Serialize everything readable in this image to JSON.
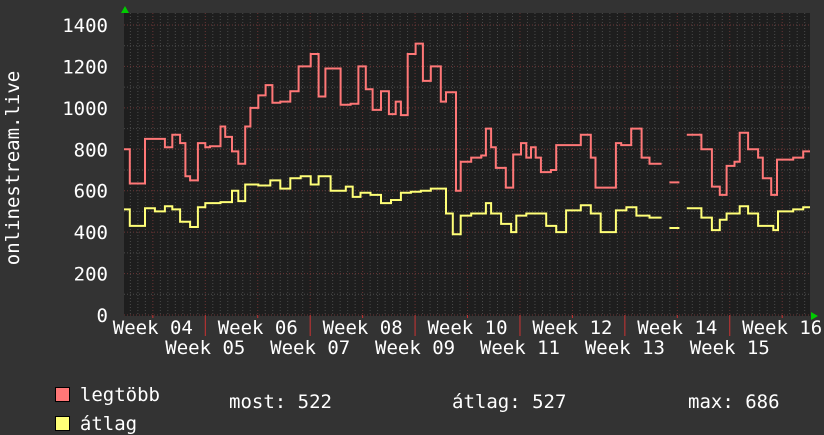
{
  "chart_data": {
    "type": "line",
    "step": true,
    "ylabel": "onlinestream.live",
    "xlabel": "",
    "ylim": [
      0,
      1400
    ],
    "xlim_weeks": [
      3.45,
      16.53
    ],
    "yticks": [
      "0",
      "200",
      "400",
      "600",
      "800",
      "1000",
      "1200",
      "1400"
    ],
    "xticks": [
      {
        "week": 4,
        "label": "Week 04"
      },
      {
        "week": 5,
        "label": "Week 05"
      },
      {
        "week": 6,
        "label": "Week 06"
      },
      {
        "week": 7,
        "label": "Week 07"
      },
      {
        "week": 8,
        "label": "Week 08"
      },
      {
        "week": 9,
        "label": "Week 09"
      },
      {
        "week": 10,
        "label": "Week 10"
      },
      {
        "week": 11,
        "label": "Week 11"
      },
      {
        "week": 12,
        "label": "Week 12"
      },
      {
        "week": 13,
        "label": "Week 13"
      },
      {
        "week": 14,
        "label": "Week 14"
      },
      {
        "week": 15,
        "label": "Week 15"
      },
      {
        "week": 16,
        "label": "Week 16"
      }
    ],
    "grid": true,
    "background": "#1e1e1e",
    "series": [
      {
        "name": "legtöbb",
        "color": "#ff7777",
        "points": [
          [
            3.45,
            800
          ],
          [
            3.56,
            635
          ],
          [
            3.85,
            850
          ],
          [
            4.23,
            810
          ],
          [
            4.37,
            870
          ],
          [
            4.52,
            830
          ],
          [
            4.62,
            670
          ],
          [
            4.71,
            650
          ],
          [
            4.86,
            830
          ],
          [
            5.0,
            810
          ],
          [
            5.09,
            815
          ],
          [
            5.29,
            910
          ],
          [
            5.38,
            860
          ],
          [
            5.51,
            790
          ],
          [
            5.63,
            730
          ],
          [
            5.76,
            910
          ],
          [
            5.86,
            1000
          ],
          [
            6.01,
            1060
          ],
          [
            6.15,
            1110
          ],
          [
            6.28,
            1025
          ],
          [
            6.43,
            1030
          ],
          [
            6.62,
            1080
          ],
          [
            6.78,
            1200
          ],
          [
            7.01,
            1260
          ],
          [
            7.16,
            1055
          ],
          [
            7.29,
            1190
          ],
          [
            7.58,
            1015
          ],
          [
            7.77,
            1020
          ],
          [
            7.92,
            1200
          ],
          [
            8.06,
            1090
          ],
          [
            8.19,
            990
          ],
          [
            8.35,
            1080
          ],
          [
            8.5,
            970
          ],
          [
            8.63,
            1030
          ],
          [
            8.73,
            965
          ],
          [
            8.86,
            1260
          ],
          [
            9.01,
            1310
          ],
          [
            9.15,
            1130
          ],
          [
            9.3,
            1200
          ],
          [
            9.49,
            1030
          ],
          [
            9.59,
            1075
          ],
          [
            9.78,
            600
          ],
          [
            9.87,
            740
          ],
          [
            10.07,
            760
          ],
          [
            10.26,
            770
          ],
          [
            10.35,
            900
          ],
          [
            10.45,
            810
          ],
          [
            10.54,
            710
          ],
          [
            10.73,
            615
          ],
          [
            10.87,
            775
          ],
          [
            11.02,
            830
          ],
          [
            11.12,
            760
          ],
          [
            11.21,
            810
          ],
          [
            11.3,
            760
          ],
          [
            11.4,
            690
          ],
          [
            11.59,
            700
          ],
          [
            11.69,
            820
          ],
          [
            12.16,
            870
          ],
          [
            12.35,
            760
          ],
          [
            12.44,
            615
          ],
          [
            12.83,
            830
          ],
          [
            12.93,
            820
          ],
          [
            13.12,
            900
          ],
          [
            13.32,
            760
          ],
          [
            13.47,
            730
          ],
          [
            13.7,
            null
          ],
          [
            13.85,
            640
          ],
          [
            14.04,
            null
          ],
          [
            14.18,
            870
          ],
          [
            14.46,
            800
          ],
          [
            14.66,
            620
          ],
          [
            14.81,
            580
          ],
          [
            14.94,
            720
          ],
          [
            15.09,
            740
          ],
          [
            15.19,
            880
          ],
          [
            15.35,
            800
          ],
          [
            15.54,
            760
          ],
          [
            15.63,
            660
          ],
          [
            15.79,
            580
          ],
          [
            15.9,
            750
          ],
          [
            16.21,
            760
          ],
          [
            16.4,
            790
          ],
          [
            16.53,
            790
          ]
        ]
      },
      {
        "name": "átlag",
        "color": "#ffff77",
        "points": [
          [
            3.45,
            510
          ],
          [
            3.56,
            430
          ],
          [
            3.85,
            515
          ],
          [
            4.04,
            500
          ],
          [
            4.23,
            525
          ],
          [
            4.37,
            510
          ],
          [
            4.52,
            450
          ],
          [
            4.71,
            425
          ],
          [
            4.86,
            520
          ],
          [
            5.0,
            540
          ],
          [
            5.29,
            545
          ],
          [
            5.51,
            600
          ],
          [
            5.63,
            550
          ],
          [
            5.76,
            630
          ],
          [
            6.01,
            625
          ],
          [
            6.24,
            650
          ],
          [
            6.43,
            610
          ],
          [
            6.62,
            660
          ],
          [
            6.82,
            670
          ],
          [
            7.01,
            630
          ],
          [
            7.16,
            670
          ],
          [
            7.39,
            600
          ],
          [
            7.68,
            620
          ],
          [
            7.81,
            570
          ],
          [
            7.96,
            590
          ],
          [
            8.15,
            580
          ],
          [
            8.35,
            540
          ],
          [
            8.54,
            555
          ],
          [
            8.73,
            590
          ],
          [
            8.92,
            595
          ],
          [
            9.11,
            600
          ],
          [
            9.3,
            610
          ],
          [
            9.59,
            490
          ],
          [
            9.72,
            390
          ],
          [
            9.87,
            480
          ],
          [
            10.07,
            490
          ],
          [
            10.35,
            540
          ],
          [
            10.45,
            490
          ],
          [
            10.64,
            440
          ],
          [
            10.83,
            400
          ],
          [
            10.93,
            480
          ],
          [
            11.12,
            490
          ],
          [
            11.3,
            490
          ],
          [
            11.5,
            430
          ],
          [
            11.69,
            400
          ],
          [
            11.88,
            505
          ],
          [
            12.16,
            530
          ],
          [
            12.35,
            490
          ],
          [
            12.54,
            400
          ],
          [
            12.83,
            505
          ],
          [
            13.03,
            520
          ],
          [
            13.22,
            480
          ],
          [
            13.47,
            470
          ],
          [
            13.7,
            null
          ],
          [
            13.85,
            420
          ],
          [
            14.04,
            null
          ],
          [
            14.18,
            515
          ],
          [
            14.46,
            470
          ],
          [
            14.66,
            410
          ],
          [
            14.81,
            460
          ],
          [
            14.94,
            490
          ],
          [
            15.19,
            525
          ],
          [
            15.35,
            490
          ],
          [
            15.54,
            430
          ],
          [
            15.83,
            410
          ],
          [
            15.92,
            500
          ],
          [
            16.21,
            510
          ],
          [
            16.4,
            520
          ],
          [
            16.53,
            520
          ]
        ]
      }
    ]
  },
  "legend": {
    "max_label": "legtöbb",
    "avg_label": "átlag",
    "now": "most: 522",
    "avg": "átlag: 527",
    "max": "max: 686"
  }
}
